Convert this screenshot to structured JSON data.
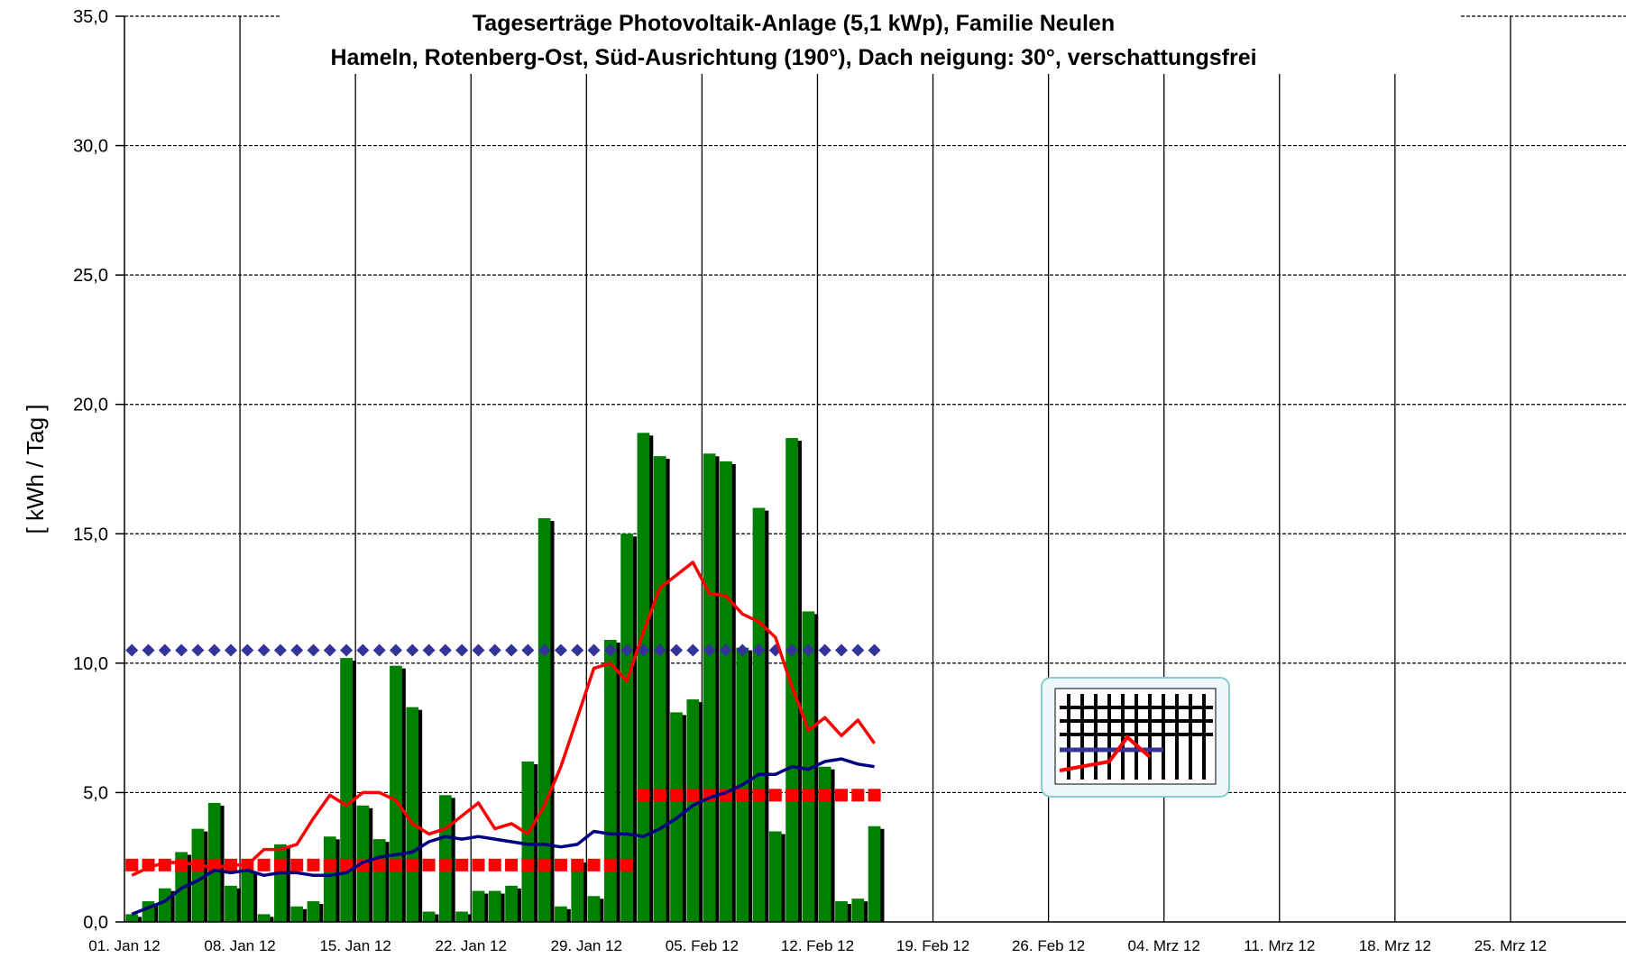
{
  "chart_data": {
    "type": "bar",
    "title": "Tageserträge Photovoltaik-Anlage (5,1  kWp),  Familie  Neulen",
    "subtitle": "Hameln, Rotenberg-Ost, Süd-Ausrichtung (190°), Dach neigung: 30°, verschattungsfrei",
    "y_label": "[ kWh / Tag ]",
    "categories": [
      "01. Jan 12",
      null,
      null,
      null,
      null,
      null,
      null,
      "08. Jan 12",
      null,
      null,
      null,
      null,
      null,
      null,
      "15. Jan 12",
      null,
      null,
      null,
      null,
      null,
      null,
      "22. Jan 12",
      null,
      null,
      null,
      null,
      null,
      null,
      "29. Jan 12",
      null,
      null,
      null,
      null,
      null,
      null,
      "05. Feb 12",
      null,
      null,
      null,
      null,
      null,
      null,
      "12. Feb 12",
      null,
      null,
      null,
      null,
      null,
      null,
      "19. Feb 12",
      null,
      null,
      null,
      null,
      null,
      null,
      "26. Feb 12",
      null,
      null,
      null,
      null,
      null,
      null,
      "04. Mrz 12",
      null,
      null,
      null,
      null,
      null,
      null,
      "11. Mrz 12",
      null,
      null,
      null,
      null,
      null,
      null,
      "18. Mrz 12",
      null,
      null,
      null,
      null,
      null,
      null,
      "25. Mrz 12",
      null,
      null,
      null,
      null,
      null,
      null
    ],
    "ylim": [
      0,
      35
    ],
    "yticks": [
      {
        "value": 0,
        "label": "0,0"
      },
      {
        "value": 5,
        "label": "5,0"
      },
      {
        "value": 10,
        "label": "10,0"
      },
      {
        "value": 15,
        "label": "15,0"
      },
      {
        "value": 20,
        "label": "20,0"
      },
      {
        "value": 25,
        "label": "25,0"
      },
      {
        "value": 30,
        "label": "30,0"
      },
      {
        "value": 35,
        "label": "35,0"
      }
    ],
    "grid": true,
    "series": [
      {
        "type": "bar",
        "color": "#008000",
        "values": [
          0.3,
          0.8,
          1.3,
          2.7,
          3.6,
          4.6,
          1.4,
          2.0,
          0.3,
          3.0,
          0.6,
          0.8,
          3.3,
          10.2,
          4.5,
          3.2,
          9.9,
          8.3,
          0.4,
          4.9,
          0.4,
          1.2,
          1.2,
          1.4,
          6.2,
          15.6,
          0.6,
          2.4,
          1.0,
          10.9,
          15.0,
          18.9,
          18.0,
          8.1,
          8.6,
          18.1,
          17.8,
          10.6,
          16.0,
          3.5,
          18.7,
          12.0,
          6.0,
          0.8,
          0.9,
          3.7,
          null,
          null,
          null,
          null,
          null,
          null,
          null,
          null,
          null,
          null,
          null,
          null,
          null,
          null,
          null,
          null,
          null,
          null,
          null,
          null,
          null,
          null,
          null,
          null,
          null,
          null,
          null,
          null,
          null,
          null,
          null,
          null,
          null,
          null,
          null,
          null,
          null,
          null,
          null,
          null,
          null,
          null,
          null,
          null,
          null
        ]
      },
      {
        "type": "scatter",
        "marker": "diamond",
        "color": "#333399",
        "values": [
          10.5,
          10.5,
          10.5,
          10.5,
          10.5,
          10.5,
          10.5,
          10.5,
          10.5,
          10.5,
          10.5,
          10.5,
          10.5,
          10.5,
          10.5,
          10.5,
          10.5,
          10.5,
          10.5,
          10.5,
          10.5,
          10.5,
          10.5,
          10.5,
          10.5,
          10.5,
          10.5,
          10.5,
          10.5,
          10.5,
          10.5,
          10.5,
          10.5,
          10.5,
          10.5,
          10.5,
          10.5,
          10.5,
          10.5,
          10.5,
          10.5,
          10.5,
          10.5,
          10.5,
          10.5,
          10.5,
          null,
          null,
          null,
          null,
          null,
          null,
          null,
          null,
          null,
          null,
          null,
          null,
          null,
          null,
          null,
          null,
          null,
          null,
          null,
          null,
          null,
          null,
          null,
          null,
          null,
          null,
          null,
          null,
          null,
          null,
          null,
          null,
          null,
          null,
          null,
          null,
          null,
          null,
          null,
          null,
          null,
          null,
          null,
          null,
          null
        ]
      },
      {
        "type": "scatter",
        "marker": "square",
        "color": "#ff0000",
        "values": [
          2.2,
          2.2,
          2.2,
          2.2,
          2.2,
          2.2,
          2.2,
          2.2,
          2.2,
          2.2,
          2.2,
          2.2,
          2.2,
          2.2,
          2.2,
          2.2,
          2.2,
          2.2,
          2.2,
          2.2,
          2.2,
          2.2,
          2.2,
          2.2,
          2.2,
          2.2,
          2.2,
          2.2,
          2.2,
          2.2,
          2.2,
          4.9,
          4.9,
          4.9,
          4.9,
          4.9,
          4.9,
          4.9,
          4.9,
          4.9,
          4.9,
          4.9,
          4.9,
          4.9,
          4.9,
          4.9,
          null,
          null,
          null,
          null,
          null,
          null,
          null,
          null,
          null,
          null,
          null,
          null,
          null,
          null,
          null,
          null,
          null,
          null,
          null,
          null,
          null,
          null,
          null,
          null,
          null,
          null,
          null,
          null,
          null,
          null,
          null,
          null,
          null,
          null,
          null,
          null,
          null,
          null,
          null,
          null,
          null,
          null,
          null,
          null,
          null
        ]
      },
      {
        "type": "line",
        "color": "#ff0000",
        "values": [
          1.8,
          2.1,
          2.3,
          2.3,
          2.2,
          2.1,
          2.2,
          2.2,
          2.8,
          2.8,
          3.0,
          4.0,
          4.9,
          4.5,
          5.0,
          5.0,
          4.7,
          3.8,
          3.4,
          3.6,
          4.1,
          4.6,
          3.6,
          3.8,
          3.4,
          4.5,
          6.0,
          7.9,
          9.8,
          10.0,
          9.3,
          11.2,
          12.9,
          13.4,
          13.9,
          12.7,
          12.6,
          11.9,
          11.6,
          11.0,
          9.1,
          7.4,
          7.9,
          7.2,
          7.8,
          6.9,
          null,
          null,
          null,
          null,
          null,
          null,
          null,
          null,
          null,
          null,
          null,
          null,
          null,
          null,
          null,
          null,
          null,
          null,
          null,
          null,
          null,
          null,
          null,
          null,
          null,
          null,
          null,
          null,
          null,
          null,
          null,
          null,
          null,
          null,
          null,
          null,
          null,
          null,
          null,
          null,
          null,
          null,
          null,
          null,
          null
        ]
      },
      {
        "type": "line",
        "color": "#000080",
        "values": [
          0.3,
          0.55,
          0.8,
          1.3,
          1.6,
          2.0,
          1.9,
          2.0,
          1.8,
          1.9,
          1.9,
          1.8,
          1.8,
          1.9,
          2.3,
          2.5,
          2.6,
          2.7,
          3.1,
          3.3,
          3.2,
          3.3,
          3.2,
          3.1,
          3.0,
          3.0,
          2.9,
          3.0,
          3.5,
          3.4,
          3.4,
          3.3,
          3.6,
          4.0,
          4.5,
          4.8,
          5.0,
          5.3,
          5.7,
          5.7,
          6.0,
          5.9,
          6.2,
          6.3,
          6.1,
          6.0,
          null,
          null,
          null,
          null,
          null,
          null,
          null,
          null,
          null,
          null,
          null,
          null,
          null,
          null,
          null,
          null,
          null,
          null,
          null,
          null,
          null,
          null,
          null,
          null,
          null,
          null,
          null,
          null,
          null,
          null,
          null,
          null,
          null,
          null,
          null,
          null,
          null,
          null,
          null,
          null,
          null,
          null,
          null,
          null,
          null
        ]
      }
    ]
  }
}
